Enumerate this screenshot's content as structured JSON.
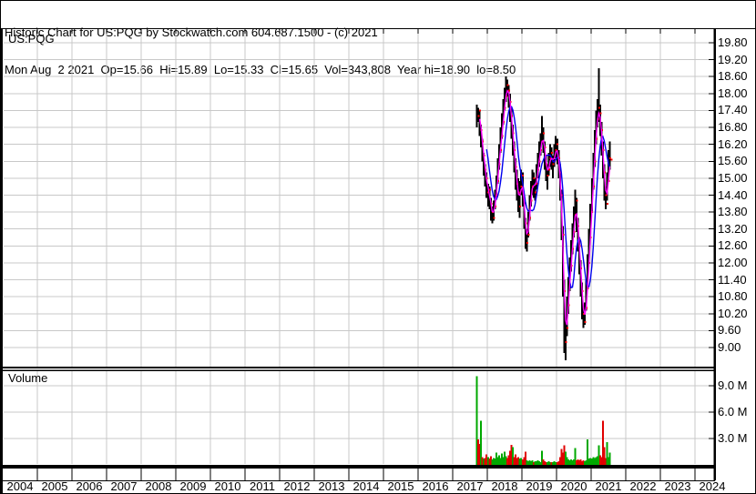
{
  "header": {
    "line1": "Historic Chart for US:PQG by Stockwatch.com 604.687.1500 - (c) 2021",
    "line2": "Mon Aug  2 2021  Op=15.66  Hi=15.89  Lo=15.33  Cl=15.65  Vol=343,808  Year hi=18.90  lo=8.50"
  },
  "price_panel": {
    "symbol": "US:PQG"
  },
  "volume_panel": {
    "label": "Volume"
  },
  "axes": {
    "price_tick_labels": [
      "19.80",
      "19.20",
      "18.60",
      "18.00",
      "17.40",
      "16.80",
      "16.20",
      "15.60",
      "15.00",
      "14.40",
      "13.80",
      "13.20",
      "12.60",
      "12.00",
      "11.40",
      "10.80",
      "10.20",
      "9.60",
      "9.00"
    ],
    "volume_tick_labels": [
      "9.0 M",
      "6.0 M",
      "3.0 M"
    ],
    "year_labels": [
      "2004",
      "2005",
      "2006",
      "2007",
      "2008",
      "2009",
      "2010",
      "2011",
      "2012",
      "2013",
      "2014",
      "2015",
      "2016",
      "2017",
      "2018",
      "2019",
      "2020",
      "2021",
      "2022",
      "2023",
      "2024"
    ]
  },
  "chart_data": {
    "type": "ohlc+volume",
    "title": "Historic Chart for US:PQG",
    "x_axis": {
      "start_year": 2004,
      "end_year": 2024.55,
      "year_gridlines": true
    },
    "price_axis": {
      "tick_min": 9.0,
      "tick_max": 19.8,
      "tick_step": 0.6,
      "panel_min": 8.3,
      "panel_max": 20.3
    },
    "volume_axis": {
      "ticks_millions": [
        3,
        6,
        9
      ],
      "panel_max_millions": 10.8
    },
    "series": {
      "t_start": 2017.7,
      "t_step": 0.04,
      "note": "hlc = [high, low, close] per interval; volume_m_signed: millions of shares, positive=up(green), negative=down(red)",
      "hlc": [
        [
          17.6,
          16.8,
          17.2
        ],
        [
          17.5,
          17.0,
          17.4
        ],
        [
          17.4,
          16.5,
          16.7
        ],
        [
          16.9,
          16.1,
          16.3
        ],
        [
          16.4,
          15.6,
          15.8
        ],
        [
          15.9,
          15.1,
          15.3
        ],
        [
          15.5,
          14.7,
          15.0
        ],
        [
          15.2,
          14.3,
          14.5
        ],
        [
          14.8,
          14.0,
          14.6
        ],
        [
          14.7,
          13.9,
          14.1
        ],
        [
          14.3,
          13.5,
          13.8
        ],
        [
          14.0,
          13.4,
          13.6
        ],
        [
          14.2,
          13.5,
          14.0
        ],
        [
          14.6,
          13.9,
          14.4
        ],
        [
          15.1,
          14.3,
          14.9
        ],
        [
          15.7,
          14.8,
          15.5
        ],
        [
          16.2,
          15.3,
          16.0
        ],
        [
          16.8,
          15.9,
          16.5
        ],
        [
          17.3,
          16.4,
          17.0
        ],
        [
          17.8,
          16.9,
          17.5
        ],
        [
          18.2,
          17.4,
          17.9
        ],
        [
          18.6,
          17.7,
          18.3
        ],
        [
          18.5,
          17.9,
          18.1
        ],
        [
          18.3,
          17.5,
          17.7
        ],
        [
          18.0,
          17.0,
          17.2
        ],
        [
          17.5,
          16.4,
          16.6
        ],
        [
          16.9,
          15.8,
          16.0
        ],
        [
          16.3,
          15.2,
          15.4
        ],
        [
          15.7,
          14.6,
          14.8
        ],
        [
          15.3,
          14.2,
          14.5
        ],
        [
          15.0,
          13.8,
          14.0
        ],
        [
          14.9,
          13.6,
          14.7
        ],
        [
          15.3,
          14.4,
          15.1
        ],
        [
          15.2,
          14.0,
          14.2
        ],
        [
          14.4,
          13.2,
          13.4
        ],
        [
          13.6,
          12.5,
          12.7
        ],
        [
          13.2,
          12.4,
          13.0
        ],
        [
          13.8,
          12.9,
          13.6
        ],
        [
          14.4,
          13.5,
          14.2
        ],
        [
          14.9,
          14.0,
          14.7
        ],
        [
          15.3,
          14.4,
          15.0
        ],
        [
          15.2,
          14.3,
          14.5
        ],
        [
          15.0,
          14.2,
          14.8
        ],
        [
          15.5,
          14.6,
          15.3
        ],
        [
          15.9,
          15.0,
          15.6
        ],
        [
          16.3,
          15.4,
          16.0
        ],
        [
          16.6,
          15.8,
          16.3
        ],
        [
          17.2,
          16.2,
          16.6
        ],
        [
          16.8,
          15.9,
          16.1
        ],
        [
          16.3,
          15.3,
          15.5
        ],
        [
          15.8,
          14.9,
          15.1
        ],
        [
          15.5,
          14.6,
          15.3
        ],
        [
          15.9,
          15.1,
          15.7
        ],
        [
          16.2,
          15.4,
          15.9
        ],
        [
          16.1,
          15.3,
          15.5
        ],
        [
          15.8,
          15.0,
          15.6
        ],
        [
          16.2,
          15.4,
          16.0
        ],
        [
          16.5,
          15.7,
          16.2
        ],
        [
          16.4,
          15.5,
          15.7
        ],
        [
          16.0,
          15.0,
          15.2
        ],
        [
          15.5,
          14.2,
          14.4
        ],
        [
          14.6,
          12.8,
          13.0
        ],
        [
          13.3,
          10.8,
          11.0
        ],
        [
          11.4,
          8.8,
          9.2
        ],
        [
          10.0,
          8.55,
          9.7
        ],
        [
          10.8,
          9.4,
          10.5
        ],
        [
          11.5,
          10.2,
          11.2
        ],
        [
          12.2,
          11.0,
          11.9
        ],
        [
          12.8,
          11.7,
          12.5
        ],
        [
          13.4,
          12.3,
          13.1
        ],
        [
          14.0,
          12.9,
          13.7
        ],
        [
          14.6,
          13.5,
          14.2
        ],
        [
          14.3,
          13.1,
          13.3
        ],
        [
          13.6,
          12.4,
          12.6
        ],
        [
          12.9,
          11.6,
          11.8
        ],
        [
          12.1,
          10.8,
          11.0
        ],
        [
          11.3,
          10.0,
          10.2
        ],
        [
          10.5,
          9.7,
          9.9
        ],
        [
          10.6,
          9.8,
          10.4
        ],
        [
          11.4,
          10.3,
          11.1
        ],
        [
          12.3,
          11.1,
          12.0
        ],
        [
          13.2,
          12.0,
          12.9
        ],
        [
          14.1,
          12.9,
          13.8
        ],
        [
          15.0,
          13.8,
          14.7
        ],
        [
          15.9,
          14.6,
          15.6
        ],
        [
          16.7,
          15.4,
          16.4
        ],
        [
          17.4,
          16.2,
          17.1
        ],
        [
          17.8,
          16.8,
          17.5
        ],
        [
          18.9,
          17.0,
          17.3
        ],
        [
          17.6,
          16.5,
          16.7
        ],
        [
          17.0,
          15.8,
          16.0
        ],
        [
          16.3,
          15.0,
          15.2
        ],
        [
          15.5,
          14.2,
          14.4
        ],
        [
          14.7,
          13.9,
          14.1
        ],
        [
          15.2,
          14.2,
          14.9
        ],
        [
          16.0,
          14.9,
          15.7
        ],
        [
          16.3,
          15.3,
          15.65
        ]
      ],
      "volume_m_signed": [
        10.1,
        -2.9,
        -2.4,
        5.0,
        -0.9,
        0.7,
        -0.8,
        -1.2,
        0.9,
        -0.7,
        -1.0,
        0.6,
        0.8,
        0.7,
        1.4,
        0.9,
        1.1,
        0.8,
        1.3,
        0.9,
        1.5,
        1.0,
        -0.8,
        -1.1,
        -1.6,
        -2.3,
        2.0,
        -0.9,
        -1.2,
        -0.8,
        -0.9,
        0.7,
        0.8,
        -0.6,
        -0.9,
        -1.5,
        0.5,
        0.4,
        0.5,
        0.4,
        0.5,
        -0.3,
        0.4,
        0.4,
        0.5,
        0.4,
        0.3,
        1.6,
        -0.6,
        -0.4,
        -0.3,
        0.3,
        0.4,
        0.3,
        -0.3,
        0.3,
        0.4,
        0.3,
        -0.3,
        -0.4,
        -0.9,
        -1.8,
        -1.4,
        -2.2,
        1.5,
        0.9,
        0.6,
        0.5,
        0.6,
        0.5,
        0.6,
        1.9,
        -0.5,
        -0.6,
        -0.5,
        -0.6,
        -0.4,
        -0.5,
        0.4,
        0.5,
        2.9,
        0.7,
        0.8,
        0.7,
        0.9,
        0.8,
        0.9,
        1.0,
        2.2,
        -1.1,
        -0.9,
        -5.0,
        -2.0,
        -0.8,
        2.6,
        0.9,
        1.4
      ]
    },
    "overlays": [
      {
        "name": "ma-fast",
        "window": 3,
        "color": "#ff00ff"
      },
      {
        "name": "ma-slow",
        "window": 8,
        "color": "#0000ee"
      }
    ],
    "colors": {
      "bar": "#000000",
      "close_tick": "#ff0000",
      "vol_up": "#00a800",
      "vol_down": "#e00000",
      "grid": "#c8c8c8",
      "frame": "#000000"
    }
  }
}
